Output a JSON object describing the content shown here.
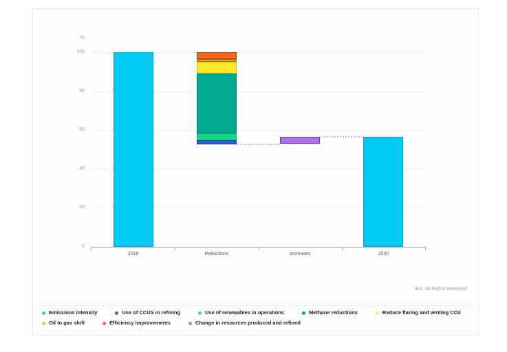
{
  "source_note": "IEA. All Rights Reserved",
  "chart_data": {
    "type": "waterfall",
    "title": "",
    "ylabel": "%",
    "ylim": [
      0,
      100
    ],
    "yticks": [
      0,
      20,
      40,
      60,
      80,
      100
    ],
    "grid": "horizontal-dotted",
    "legend_position": "bottom",
    "categories": [
      "2018",
      "Reductions",
      "Increases",
      "2030"
    ],
    "bars": [
      {
        "category": "2018",
        "segments": [
          {
            "name": "Emissions intensity",
            "from": 0,
            "to": 100
          }
        ]
      },
      {
        "category": "Reductions",
        "segments": [
          {
            "name": "Use of CCUS in refining",
            "from": 52.6,
            "to": 54.9
          },
          {
            "name": "Use of renewables in operations",
            "from": 54.9,
            "to": 58.3
          },
          {
            "name": "Methane reductions",
            "from": 58.3,
            "to": 89.2
          },
          {
            "name": "Reduce flaring and venting CO2",
            "from": 89.2,
            "to": 95.0
          },
          {
            "name": "Oil to gas shift",
            "from": 95.0,
            "to": 96.3
          },
          {
            "name": "Efficiency improvements",
            "from": 96.3,
            "to": 100
          }
        ]
      },
      {
        "category": "Increases",
        "segments": [
          {
            "name": "Change in resources produced and refined",
            "from": 52.9,
            "to": 56.4
          }
        ]
      },
      {
        "category": "2030",
        "segments": [
          {
            "name": "Emissions intensity",
            "from": 0,
            "to": 56.4
          }
        ]
      }
    ],
    "connectors": [
      {
        "value": 52.8,
        "from_category": 1,
        "to_category": 2
      },
      {
        "value": 56.4,
        "from_category": 2,
        "to_category": 3
      }
    ],
    "series_colors": {
      "Emissions intensity": {
        "fill": "#00C9F2",
        "border": "#0D9FD4"
      },
      "Use of CCUS in refining": {
        "fill": "#2F5CD6",
        "border": "#1E3EA6"
      },
      "Use of renewables in operations": {
        "fill": "#12D98A",
        "border": "#0BB571"
      },
      "Methane reductions": {
        "fill": "#00A98F",
        "border": "#007E6B"
      },
      "Reduce flaring and venting CO2": {
        "fill": "#FFE92E",
        "border": "#D8BC17"
      },
      "Oil to gas shift": {
        "fill": "#D2A51E",
        "border": "#9E7A10"
      },
      "Efficiency improvements": {
        "fill": "#F4691E",
        "border": "#A63A12"
      },
      "Change in resources produced and refined": {
        "fill": "#A873E3",
        "border": "#6E3BA6"
      }
    }
  },
  "legend": {
    "rows": [
      [
        {
          "label": "Emissions intensity",
          "color": "#2BD3A8"
        },
        {
          "label": "Use of CCUS in refining",
          "color": "#3E62CF"
        },
        {
          "label": "Use of renewables in operations",
          "color": "#35DE8F"
        },
        {
          "label": "Methane reductions",
          "color": "#00A98F"
        },
        {
          "label": "Reduce flaring and venting CO2",
          "color": "#F2EE70"
        }
      ],
      [
        {
          "label": "Oil to gas shift",
          "color": "#D9CB2E"
        },
        {
          "label": "Efficiency improvements",
          "color": "#EE7039"
        },
        {
          "label": "Change in resources produced and refined",
          "color": "#B185E0"
        }
      ]
    ]
  }
}
